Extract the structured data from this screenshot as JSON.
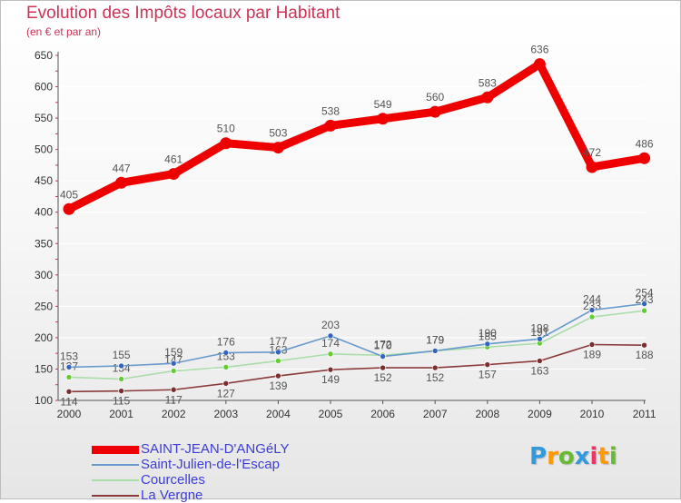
{
  "chart_data": {
    "type": "line",
    "title": "Evolution des Impôts locaux par Habitant",
    "subtitle": "(en € et par an)",
    "xlabel": "",
    "ylabel": "",
    "ylim": [
      100,
      650
    ],
    "yticks": [
      100,
      150,
      200,
      250,
      300,
      350,
      400,
      450,
      500,
      550,
      600,
      650
    ],
    "categories": [
      "2000",
      "2001",
      "2002",
      "2003",
      "2004",
      "2005",
      "2006",
      "2007",
      "2008",
      "2009",
      "2010",
      "2011"
    ],
    "series": [
      {
        "name": "SAINT-JEAN-D'ANGéLY",
        "color": "#ee0000",
        "values": [
          405,
          447,
          461,
          510,
          503,
          538,
          549,
          560,
          583,
          636,
          472,
          486
        ],
        "label_position": "above"
      },
      {
        "name": "Saint-Julien-de-l'Escap",
        "color": "#6699cc",
        "marker": "#3366bb",
        "values": [
          153,
          155,
          159,
          176,
          177,
          203,
          170,
          179,
          190,
          198,
          244,
          254
        ],
        "label_position": "above"
      },
      {
        "name": "Courcelles",
        "color": "#aaddaa",
        "marker": "#66cc33",
        "values": [
          137,
          134,
          147,
          153,
          163,
          174,
          172,
          179,
          185,
          191,
          233,
          243
        ],
        "label_position": "above"
      },
      {
        "name": "La Vergne",
        "color": "#8b3a3a",
        "marker": "#7a2e2e",
        "values": [
          114,
          115,
          117,
          127,
          139,
          149,
          152,
          152,
          157,
          163,
          189,
          188
        ],
        "label_position": "below"
      }
    ],
    "legend_position": "bottom-left"
  },
  "logo": {
    "letters": [
      "P",
      "r",
      "o",
      "x",
      "i",
      "t",
      "i"
    ],
    "colors": [
      "#3399dd",
      "#ff9900",
      "#66bb33",
      "#3399dd",
      "#ee3366",
      "#ff9900",
      "#66bb33"
    ]
  }
}
